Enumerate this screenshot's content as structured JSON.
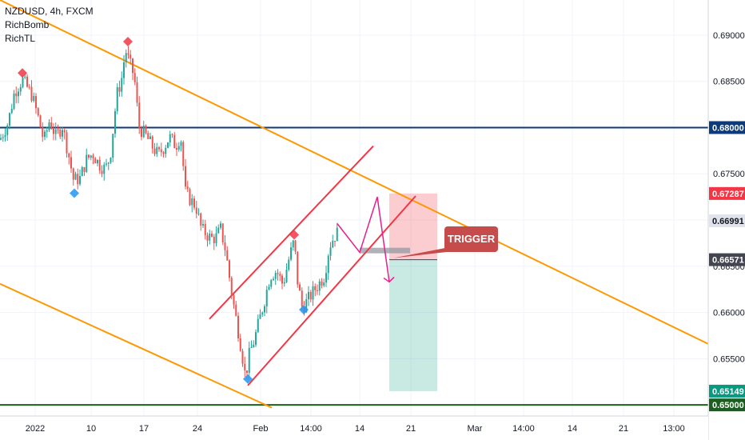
{
  "header": {
    "symbol_line": "NZDUSD, 4h, FXCM",
    "indicators": [
      "RichBomb",
      "RichTL"
    ]
  },
  "chart_data": {
    "type": "candlestick",
    "symbol": "NZDUSD",
    "timeframe": "4h",
    "source": "FXCM",
    "ylim": [
      0.6488,
      0.6938
    ],
    "y_ticks": [
      0.65,
      0.655,
      0.66,
      0.665,
      0.67,
      0.675,
      0.68,
      0.685,
      0.69
    ],
    "y_tick_labels": [
      "0.65000",
      "0.65500",
      "0.66000",
      "0.66500",
      "0.67000",
      "0.67500",
      "0.68000",
      "0.68500",
      "0.69000"
    ],
    "x_tick_labels": [
      {
        "label": "2022",
        "x": 44
      },
      {
        "label": "10",
        "x": 114
      },
      {
        "label": "17",
        "x": 180
      },
      {
        "label": "24",
        "x": 247
      },
      {
        "label": "Feb",
        "x": 326
      },
      {
        "label": "14:00",
        "x": 389
      },
      {
        "label": "14",
        "x": 450
      },
      {
        "label": "21",
        "x": 514
      },
      {
        "label": "Mar",
        "x": 594
      },
      {
        "label": "14:00",
        "x": 655
      },
      {
        "label": "14",
        "x": 716
      },
      {
        "label": "21",
        "x": 780
      },
      {
        "label": "13:00",
        "x": 843
      }
    ],
    "price_path": [
      [
        0,
        0.6787
      ],
      [
        10,
        0.6805
      ],
      [
        18,
        0.6838
      ],
      [
        28,
        0.6852
      ],
      [
        40,
        0.6835
      ],
      [
        48,
        0.681
      ],
      [
        55,
        0.6785
      ],
      [
        62,
        0.6808
      ],
      [
        70,
        0.679
      ],
      [
        78,
        0.6802
      ],
      [
        86,
        0.677
      ],
      [
        92,
        0.6743
      ],
      [
        100,
        0.6745
      ],
      [
        108,
        0.6765
      ],
      [
        116,
        0.6772
      ],
      [
        124,
        0.676
      ],
      [
        132,
        0.6755
      ],
      [
        138,
        0.677
      ],
      [
        146,
        0.6835
      ],
      [
        152,
        0.6852
      ],
      [
        157,
        0.6884
      ],
      [
        162,
        0.687
      ],
      [
        168,
        0.6855
      ],
      [
        174,
        0.68
      ],
      [
        182,
        0.6792
      ],
      [
        190,
        0.678
      ],
      [
        198,
        0.677
      ],
      [
        206,
        0.678
      ],
      [
        212,
        0.679
      ],
      [
        220,
        0.678
      ],
      [
        226,
        0.6792
      ],
      [
        232,
        0.673
      ],
      [
        238,
        0.6722
      ],
      [
        245,
        0.6715
      ],
      [
        252,
        0.669
      ],
      [
        258,
        0.6685
      ],
      [
        264,
        0.668
      ],
      [
        270,
        0.6681
      ],
      [
        276,
        0.669
      ],
      [
        282,
        0.6668
      ],
      [
        290,
        0.662
      ],
      [
        296,
        0.659
      ],
      [
        302,
        0.656
      ],
      [
        307,
        0.653
      ],
      [
        312,
        0.6555
      ],
      [
        318,
        0.657
      ],
      [
        324,
        0.659
      ],
      [
        330,
        0.661
      ],
      [
        338,
        0.664
      ],
      [
        346,
        0.6645
      ],
      [
        354,
        0.663
      ],
      [
        362,
        0.666
      ],
      [
        368,
        0.6678
      ],
      [
        372,
        0.6635
      ],
      [
        378,
        0.6605
      ],
      [
        384,
        0.6612
      ],
      [
        390,
        0.662
      ],
      [
        398,
        0.663
      ],
      [
        406,
        0.664
      ],
      [
        412,
        0.6672
      ],
      [
        418,
        0.6682
      ],
      [
        424,
        0.6688
      ]
    ],
    "highlighted_points": [
      {
        "kind": "high",
        "color": "#f23645",
        "x": 28,
        "y": 0.6859
      },
      {
        "kind": "high",
        "color": "#f23645",
        "x": 160,
        "y": 0.6893
      },
      {
        "kind": "low",
        "color": "#2196f3",
        "x": 93,
        "y": 0.6729
      },
      {
        "kind": "high",
        "color": "#f23645",
        "x": 368,
        "y": 0.6684
      },
      {
        "kind": "low",
        "color": "#2196f3",
        "x": 380,
        "y": 0.6603
      },
      {
        "kind": "low",
        "color": "#2196f3",
        "x": 310,
        "y": 0.6528
      }
    ],
    "horizontal_lines": [
      {
        "price": 0.68,
        "color": "#0d3a7a",
        "label": "0.68000"
      },
      {
        "price": 0.65,
        "color": "#1b5e20",
        "label": "0.65000"
      }
    ],
    "trendlines": [
      {
        "color": "#ff9800",
        "p1": [
          0,
          0.6938
        ],
        "p2": [
          886,
          0.6566
        ]
      },
      {
        "color": "#ff9800",
        "p1": [
          0,
          0.6631
        ],
        "p2": [
          340,
          0.6497
        ]
      },
      {
        "color": "#f23645",
        "p1": [
          262,
          0.6593
        ],
        "p2": [
          467,
          0.678
        ]
      },
      {
        "color": "#f23645",
        "p1": [
          310,
          0.6521
        ],
        "p2": [
          520,
          0.6726
        ]
      }
    ],
    "projection_path": [
      [
        422,
        0.6696
      ],
      [
        450,
        0.6665
      ],
      [
        472,
        0.6725
      ],
      [
        487,
        0.6633
      ]
    ],
    "position_tool": {
      "x_start": 487,
      "x_end": 547,
      "entry": 0.66571,
      "stop": 0.67287,
      "target": 0.65149
    },
    "gray_zone": {
      "x_start": 450,
      "x_end": 513,
      "y_top": 0.667,
      "y_bottom": 0.6664
    },
    "price_badges": [
      {
        "label": "0.67287",
        "price": 0.67287,
        "bg": "#f23645",
        "fg": "#ffffff"
      },
      {
        "label": "0.66991",
        "price": 0.66991,
        "bg": "#e0e3eb",
        "fg": "#131722"
      },
      {
        "label": "0.66571",
        "price": 0.66571,
        "bg": "#434651",
        "fg": "#ffffff"
      },
      {
        "label": "0.65149",
        "price": 0.65149,
        "bg": "#089981",
        "fg": "#ffffff"
      }
    ],
    "annotation": {
      "text": "TRIGGER",
      "bg": "#c64b4b"
    }
  }
}
